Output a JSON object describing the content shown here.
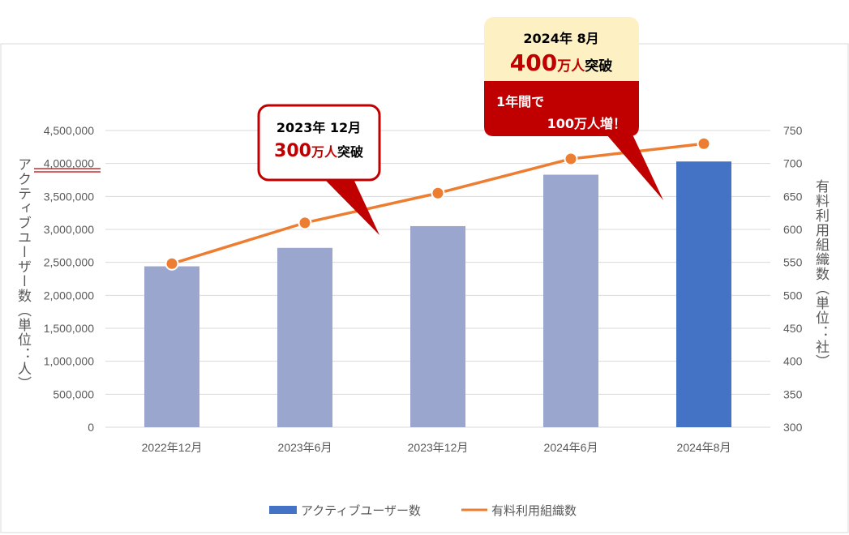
{
  "chart_data": {
    "type": "bar",
    "categories": [
      "2022年12月",
      "2023年6月",
      "2023年12月",
      "2024年6月",
      "2024年8月"
    ],
    "series": [
      {
        "name": "アクティブユーザー数",
        "kind": "bar",
        "axis": "left",
        "values": [
          2440000,
          2720000,
          3050000,
          3830000,
          4030000
        ],
        "colors": [
          "#9ba6cf",
          "#9ba6cf",
          "#9ba6cf",
          "#9ba6cf",
          "#4472c4"
        ]
      },
      {
        "name": "有料利用組織数",
        "kind": "line",
        "axis": "right",
        "values": [
          548,
          610,
          655,
          707,
          730
        ],
        "color": "#ed7d31"
      }
    ],
    "ylabel_left": "アクティブユーザー数（単位：人）",
    "ylabel_right": "有料利用組織数（単位：社）",
    "ylim_left": [
      0,
      4500000
    ],
    "ylim_right": [
      300,
      750
    ],
    "yticks_left": [
      "0",
      "500,000",
      "1,000,000",
      "1,500,000",
      "2,000,000",
      "2,500,000",
      "3,000,000",
      "3,500,000",
      "4,000,000",
      "4,500,000"
    ],
    "yticks_right": [
      "300",
      "350",
      "400",
      "450",
      "500",
      "550",
      "600",
      "650",
      "700",
      "750"
    ],
    "grid": true,
    "legend_position": "bottom",
    "annotations": {
      "callout_2023": {
        "line1": "2023年 12月",
        "num": "300",
        "unit": "万人",
        "tail": "突破"
      },
      "callout_2024": {
        "line1": "2024年 8月",
        "num": "400",
        "unit": "万人",
        "tail": "突破",
        "sub1": "1年間で",
        "sub2": "100万人増！"
      }
    }
  }
}
